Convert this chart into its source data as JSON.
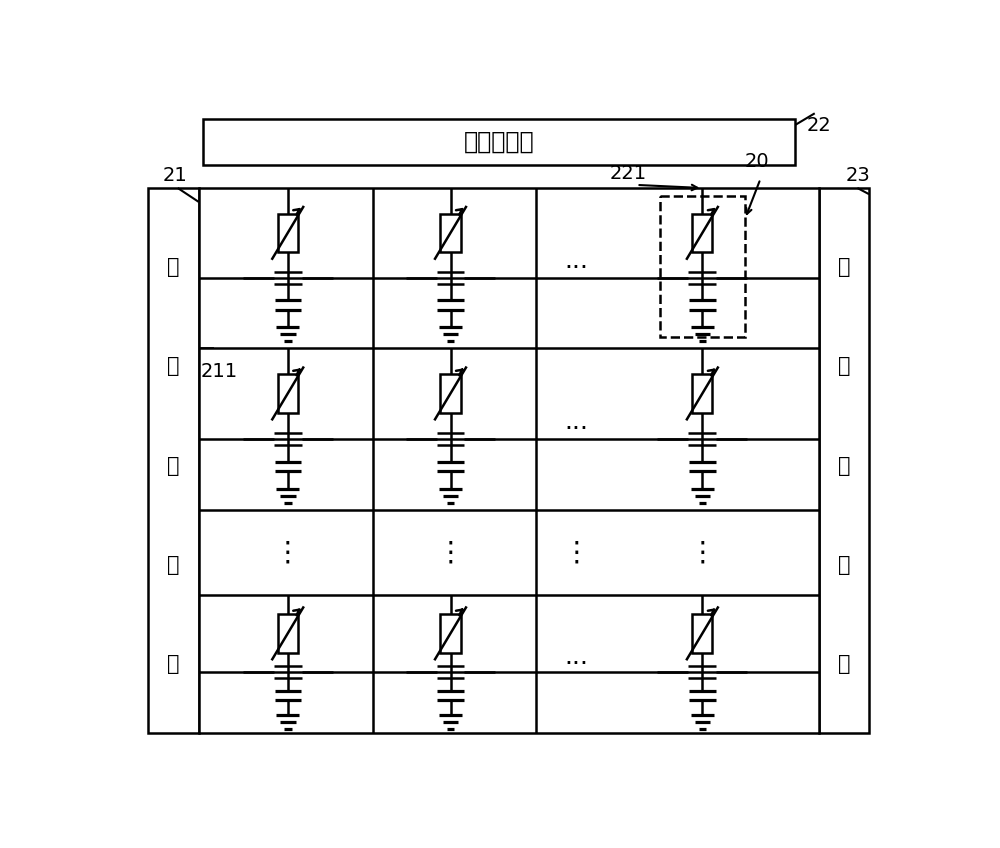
{
  "bg_color": "#ffffff",
  "line_color": "#000000",
  "label_21": "21",
  "label_22": "22",
  "label_23": "23",
  "label_211": "211",
  "label_221": "221",
  "label_20": "20",
  "text_col_bus": "列数据线组",
  "text_row_driver_chars": [
    "行",
    "驱",
    "动",
    "线",
    "组"
  ],
  "text_right_bar_chars": [
    "公",
    "共",
    "顶",
    "电",
    "极"
  ],
  "figsize": [
    10.0,
    8.48
  ]
}
